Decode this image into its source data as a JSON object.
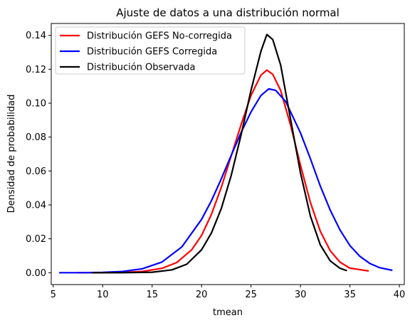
{
  "chart_data": {
    "type": "line",
    "title": "Ajuste de datos a una distribución normal",
    "xlabel": "tmean",
    "ylabel": "Densidad de probabilidad",
    "xlim": [
      4.8,
      40.5
    ],
    "ylim": [
      -0.007,
      0.147
    ],
    "xticks": [
      5,
      10,
      15,
      20,
      25,
      30,
      35,
      40
    ],
    "yticks": [
      0.0,
      0.02,
      0.04,
      0.06,
      0.08,
      0.1,
      0.12,
      0.14
    ],
    "ytick_labels": [
      "0.00",
      "0.02",
      "0.04",
      "0.06",
      "0.08",
      "0.10",
      "0.12",
      "0.14"
    ],
    "legend_position": "upper-left",
    "grid": false,
    "series": [
      {
        "name": "Distribución GEFS No-corregida",
        "color": "#ff0000",
        "x": [
          7.4,
          10.0,
          12.0,
          14.0,
          16.0,
          17.5,
          19.0,
          20.0,
          21.0,
          22.0,
          23.0,
          24.0,
          25.0,
          26.0,
          26.6,
          27.2,
          28.0,
          29.0,
          30.0,
          31.0,
          32.0,
          33.0,
          34.0,
          35.0,
          36.9
        ],
        "y": [
          0.0,
          0.0,
          0.0002,
          0.0007,
          0.0026,
          0.006,
          0.0135,
          0.022,
          0.0345,
          0.0505,
          0.069,
          0.0875,
          0.1045,
          0.1165,
          0.1195,
          0.117,
          0.1075,
          0.087,
          0.0635,
          0.0415,
          0.0245,
          0.013,
          0.0062,
          0.0027,
          0.001
        ]
      },
      {
        "name": "Distribución GEFS Corregida",
        "color": "#0000ff",
        "x": [
          5.6,
          8.0,
          10.0,
          12.0,
          14.0,
          16.0,
          18.0,
          20.0,
          21.0,
          22.0,
          23.0,
          24.0,
          25.0,
          26.0,
          26.8,
          27.5,
          28.5,
          30.0,
          31.0,
          32.0,
          33.0,
          34.0,
          35.0,
          36.0,
          37.0,
          38.0,
          39.3
        ],
        "y": [
          0.0,
          0.0,
          0.0002,
          0.0007,
          0.0023,
          0.0063,
          0.0152,
          0.0315,
          0.0425,
          0.0555,
          0.0693,
          0.0828,
          0.0948,
          0.1045,
          0.1085,
          0.1075,
          0.101,
          0.0825,
          0.0673,
          0.0512,
          0.037,
          0.0252,
          0.016,
          0.0097,
          0.0055,
          0.003,
          0.0014
        ]
      },
      {
        "name": "Distribución Observada",
        "color": "#000000",
        "x": [
          8.9,
          12.0,
          15.0,
          17.0,
          18.5,
          20.0,
          21.0,
          22.0,
          23.0,
          24.0,
          25.0,
          26.0,
          26.6,
          27.2,
          28.0,
          29.0,
          30.0,
          31.0,
          32.0,
          33.0,
          34.0,
          34.7
        ],
        "y": [
          0.0,
          0.0,
          0.0003,
          0.0017,
          0.005,
          0.0135,
          0.0235,
          0.038,
          0.0575,
          0.0815,
          0.1075,
          0.1305,
          0.1405,
          0.1375,
          0.1225,
          0.0905,
          0.059,
          0.0335,
          0.0165,
          0.007,
          0.0026,
          0.0012
        ]
      }
    ]
  }
}
